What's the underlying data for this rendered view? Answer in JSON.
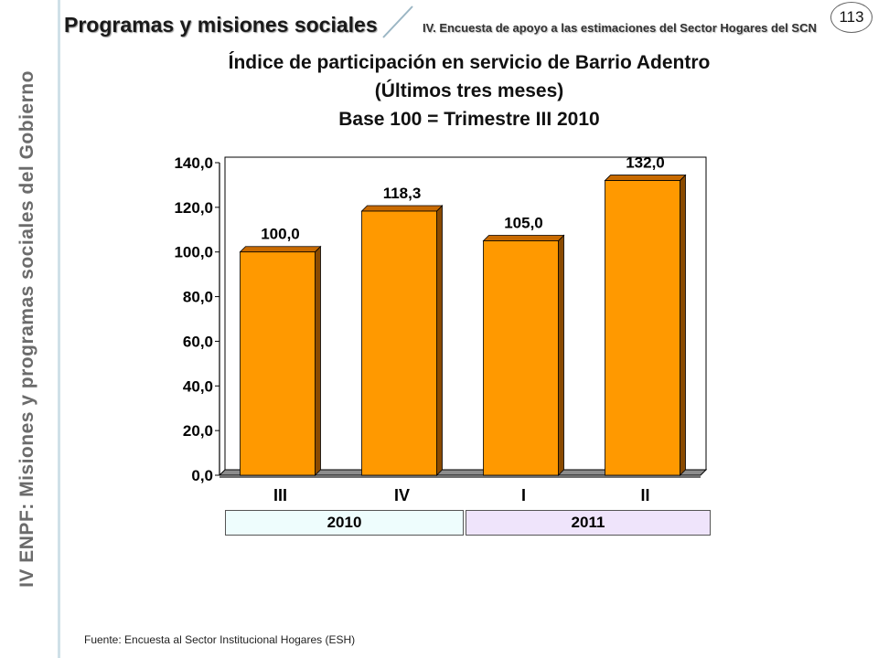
{
  "sidebar": {
    "label": "IV ENPF:  Misiones y programas sociales del Gobierno"
  },
  "header": {
    "section": "Programas y misiones sociales",
    "subtitle": "IV. Encuesta de apoyo a las estimaciones del Sector Hogares del SCN",
    "page_number": "113"
  },
  "colors": {
    "bar": "#ff9900",
    "bar_side": "#8a4a00",
    "bar_top": "#c86a00",
    "floor": "#8c8c8c"
  },
  "chart_data": {
    "type": "bar",
    "title": "Índice de participación en servicio de Barrio Adentro",
    "subtitle": "(Últimos tres meses)",
    "subtitle2": "Base 100 = Trimestre III 2010",
    "categories": [
      "III",
      "IV",
      "I",
      "II"
    ],
    "value_labels": [
      "100,0",
      "118,3",
      "105,0",
      "132,0"
    ],
    "values": [
      100.0,
      118.3,
      105.0,
      132.0
    ],
    "ylim": [
      0,
      140
    ],
    "yticks": [
      0,
      20,
      40,
      60,
      80,
      100,
      120,
      140
    ],
    "ytick_labels": [
      "0,0",
      "20,0",
      "40,0",
      "60,0",
      "80,0",
      "100,0",
      "120,0",
      "140,0"
    ],
    "groups": [
      {
        "label": "2010",
        "categories": [
          "III",
          "IV"
        ]
      },
      {
        "label": "2011",
        "categories": [
          "I",
          "II"
        ]
      }
    ],
    "grid": false,
    "legend": "none"
  },
  "footer": {
    "source": "Fuente: Encuesta al Sector Institucional Hogares (ESH)"
  }
}
